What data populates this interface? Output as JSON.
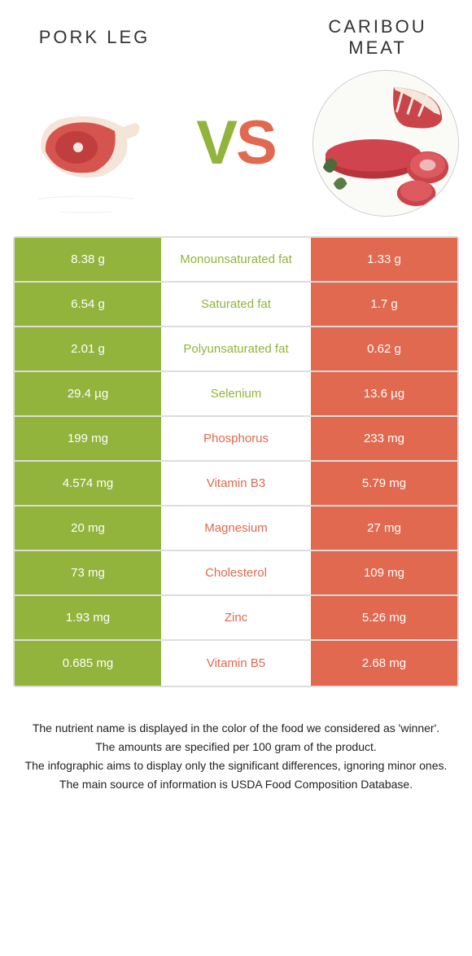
{
  "header": {
    "left_title": "PORK LEG",
    "right_title": "CARIBOU\nMEAT"
  },
  "vs": {
    "v": "V",
    "s": "S"
  },
  "colors": {
    "left_bg": "#92b33c",
    "right_bg": "#e0694f",
    "title_color": "#333333",
    "mid_left_label": "#92b33c",
    "mid_right_label": "#e0694f"
  },
  "table": {
    "rows": [
      {
        "left": "8.38 g",
        "label": "Monounsaturated fat",
        "right": "1.33 g",
        "win": "left"
      },
      {
        "left": "6.54 g",
        "label": "Saturated fat",
        "right": "1.7 g",
        "win": "left"
      },
      {
        "left": "2.01 g",
        "label": "Polyunsaturated fat",
        "right": "0.62 g",
        "win": "left"
      },
      {
        "left": "29.4 µg",
        "label": "Selenium",
        "right": "13.6 µg",
        "win": "left"
      },
      {
        "left": "199 mg",
        "label": "Phosphorus",
        "right": "233 mg",
        "win": "right"
      },
      {
        "left": "4.574 mg",
        "label": "Vitamin B3",
        "right": "5.79 mg",
        "win": "right"
      },
      {
        "left": "20 mg",
        "label": "Magnesium",
        "right": "27 mg",
        "win": "right"
      },
      {
        "left": "73 mg",
        "label": "Cholesterol",
        "right": "109 mg",
        "win": "right"
      },
      {
        "left": "1.93 mg",
        "label": "Zinc",
        "right": "5.26 mg",
        "win": "right"
      },
      {
        "left": "0.685 mg",
        "label": "Vitamin B5",
        "right": "2.68 mg",
        "win": "right"
      }
    ]
  },
  "footer": {
    "lines": [
      "The nutrient name is displayed in the color of the food we considered as 'winner'.",
      "The amounts are specified per 100 gram of the product.",
      "The infographic aims to display only the significant differences, ignoring minor ones.",
      "The main source of information is USDA Food Composition Database."
    ]
  }
}
